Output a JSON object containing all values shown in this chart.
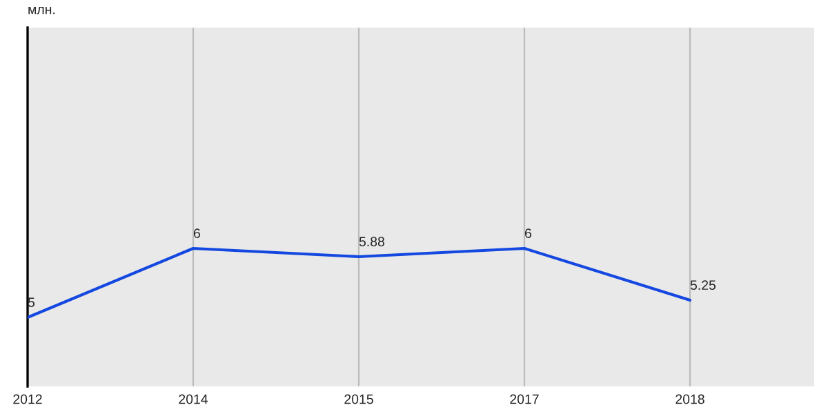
{
  "chart_data": {
    "type": "line",
    "ylabel": "млн.",
    "categories": [
      "2012",
      "2014",
      "2015",
      "2017",
      "2018"
    ],
    "series": [
      {
        "color": "#1448e0",
        "values": [
          5,
          6,
          5.88,
          6,
          5.25
        ]
      }
    ],
    "ylim": [
      4,
      9.2
    ],
    "data_labels": true,
    "grid": "x",
    "tick_labels": "x",
    "marker": "none",
    "line_style": "solid"
  }
}
